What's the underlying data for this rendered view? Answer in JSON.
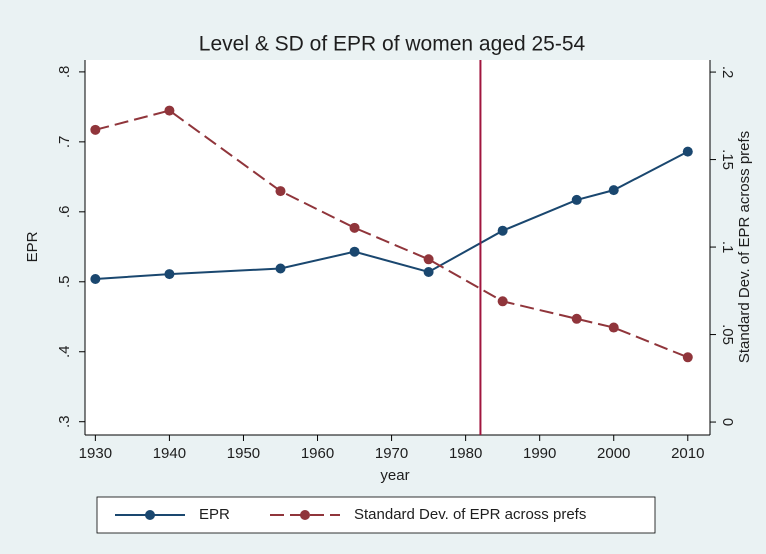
{
  "chart_data": {
    "type": "line",
    "title": "Level & SD of EPR of women aged 25-54",
    "x_label": "year",
    "y_label": "EPR",
    "y2_label": "Standard Dev. of EPR across prefs",
    "x": [
      1930,
      1940,
      1955,
      1965,
      1975,
      1985,
      1995,
      2000,
      2010
    ],
    "series": [
      {
        "name": "EPR",
        "color": "#1a476f",
        "style": "solid",
        "values": [
          0.504,
          0.511,
          0.519,
          0.543,
          0.514,
          0.573,
          0.617,
          0.631,
          0.686
        ]
      },
      {
        "name": "Standard Dev. of EPR across prefs",
        "color": "#90353b",
        "style": "dashed",
        "axis": "y2",
        "values": [
          0.167,
          0.178,
          0.132,
          0.111,
          0.093,
          0.069,
          0.059,
          0.054,
          0.037
        ]
      }
    ],
    "xlim": [
      1928.6,
      2013
    ],
    "xticks": [
      1930,
      1940,
      1950,
      1960,
      1970,
      1980,
      1990,
      2000,
      2010
    ],
    "ylim": [
      0.281,
      0.817
    ],
    "yticks": [
      {
        "value": 0.3,
        "label": ".3"
      },
      {
        "value": 0.4,
        "label": ".4"
      },
      {
        "value": 0.5,
        "label": ".5"
      },
      {
        "value": 0.6,
        "label": ".6"
      },
      {
        "value": 0.7,
        "label": ".7"
      },
      {
        "value": 0.8,
        "label": ".8"
      }
    ],
    "y2lim": [
      -0.0074,
      0.2069
    ],
    "y2ticks": [
      0,
      {
        "value": 0.05,
        "label": ".05"
      },
      {
        "value": 0.1,
        "label": ".1"
      },
      {
        "value": 0.15,
        "label": ".15"
      },
      {
        "value": 0.2,
        "label": ".2"
      }
    ],
    "reference_line_x": 1982,
    "reference_line_color": "#a0153e",
    "legend": "bottom"
  }
}
